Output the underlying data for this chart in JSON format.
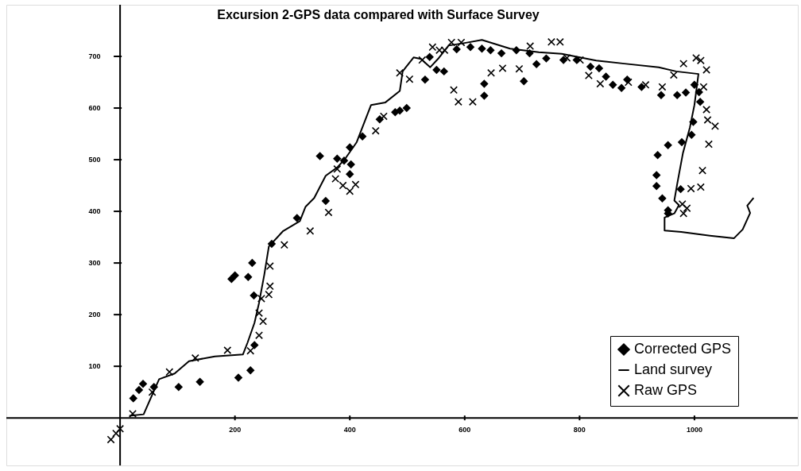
{
  "chart_data": {
    "type": "scatter",
    "title": "Excursion 2-GPS data compared with Surface Survey",
    "xlim": [
      -198,
      1180
    ],
    "ylim": [
      -92,
      800
    ],
    "xticks": [
      200,
      400,
      600,
      800,
      1000
    ],
    "yticks": [
      100,
      200,
      300,
      400,
      500,
      600,
      700
    ],
    "grid": false,
    "legend": "bottom right",
    "series": [
      {
        "name": "Corrected GPS",
        "type": "scatter",
        "marker": "diamond",
        "color": "#000000",
        "x": [
          23,
          33,
          40,
          59,
          102,
          139,
          206,
          227,
          234,
          233,
          194,
          200,
          223,
          230,
          264,
          308,
          358,
          348,
          378,
          390,
          402,
          400,
          400,
          422,
          452,
          479,
          487,
          499,
          531,
          539,
          551,
          564,
          586,
          634,
          634,
          610,
          630,
          645,
          664,
          703,
          690,
          713,
          725,
          742,
          772,
          795,
          819,
          834,
          846,
          858,
          873,
          883,
          908,
          942,
          970,
          985,
          1000,
          1008,
          1010,
          998,
          995,
          978,
          954,
          936,
          934,
          934,
          944,
          954,
          954,
          976
        ],
        "values": [
          38,
          54,
          66,
          60,
          60,
          70,
          78,
          92,
          141,
          237,
          269,
          276,
          273,
          300,
          337,
          387,
          420,
          507,
          502,
          498,
          491,
          472,
          524,
          545,
          578,
          592,
          595,
          600,
          655,
          699,
          674,
          671,
          714,
          647,
          624,
          718,
          715,
          712,
          706,
          652,
          712,
          706,
          685,
          696,
          693,
          693,
          680,
          677,
          661,
          645,
          639,
          655,
          641,
          625,
          625,
          630,
          645,
          631,
          612,
          573,
          548,
          534,
          528,
          509,
          470,
          449,
          425,
          402,
          396,
          443
        ]
      },
      {
        "name": "Land survey",
        "type": "line",
        "marker": "none",
        "color": "#000000",
        "x": [
          16,
          41,
          58,
          68,
          95,
          120,
          165,
          214,
          222,
          234,
          242,
          251,
          259,
          284,
          313,
          323,
          338,
          358,
          378,
          392,
          412,
          437,
          462,
          487,
          492,
          511,
          524,
          540,
          555,
          572,
          600,
          630,
          679,
          729,
          769,
          829,
          878,
          938,
          968,
          1007,
          1000,
          992,
          980,
          970,
          965,
          973,
          965,
          948,
          948,
          977,
          1027,
          1069,
          1084,
          1097,
          1092,
          1103
        ],
        "values": [
          4,
          7,
          50,
          75,
          86,
          110,
          119,
          123,
          146,
          184,
          223,
          277,
          332,
          362,
          381,
          409,
          426,
          469,
          485,
          502,
          534,
          606,
          611,
          633,
          671,
          698,
          695,
          679,
          697,
          721,
          726,
          732,
          715,
          708,
          705,
          692,
          686,
          679,
          671,
          666,
          606,
          562,
          513,
          453,
          421,
          412,
          396,
          388,
          363,
          360,
          353,
          348,
          365,
          397,
          411,
          426
        ]
      },
      {
        "name": "Raw GPS",
        "type": "scatter",
        "marker": "cross",
        "color": "#000000",
        "x": [
          -16,
          -7,
          0,
          22,
          56,
          86,
          131,
          187,
          227,
          242,
          249,
          242,
          246,
          259,
          261,
          261,
          286,
          331,
          363,
          375,
          388,
          400,
          410,
          378,
          445,
          459,
          504,
          487,
          526,
          544,
          556,
          565,
          577,
          594,
          581,
          589,
          614,
          646,
          666,
          695,
          714,
          751,
          766,
          778,
          801,
          816,
          836,
          885,
          915,
          944,
          964,
          981,
          1003,
          1011,
          1021,
          1016,
          1021,
          1023,
          1036,
          1025,
          1014,
          1011,
          994,
          979,
          987,
          981
        ],
        "values": [
          -42,
          -30,
          -21,
          8,
          50,
          89,
          116,
          131,
          130,
          160,
          187,
          203,
          231,
          239,
          255,
          294,
          335,
          362,
          398,
          463,
          450,
          439,
          452,
          482,
          556,
          584,
          656,
          668,
          693,
          718,
          712,
          712,
          727,
          727,
          635,
          612,
          612,
          668,
          677,
          676,
          720,
          728,
          728,
          697,
          693,
          663,
          647,
          650,
          645,
          641,
          664,
          686,
          697,
          692,
          674,
          641,
          597,
          577,
          565,
          530,
          479,
          447,
          444,
          414,
          406,
          396
        ]
      }
    ]
  }
}
